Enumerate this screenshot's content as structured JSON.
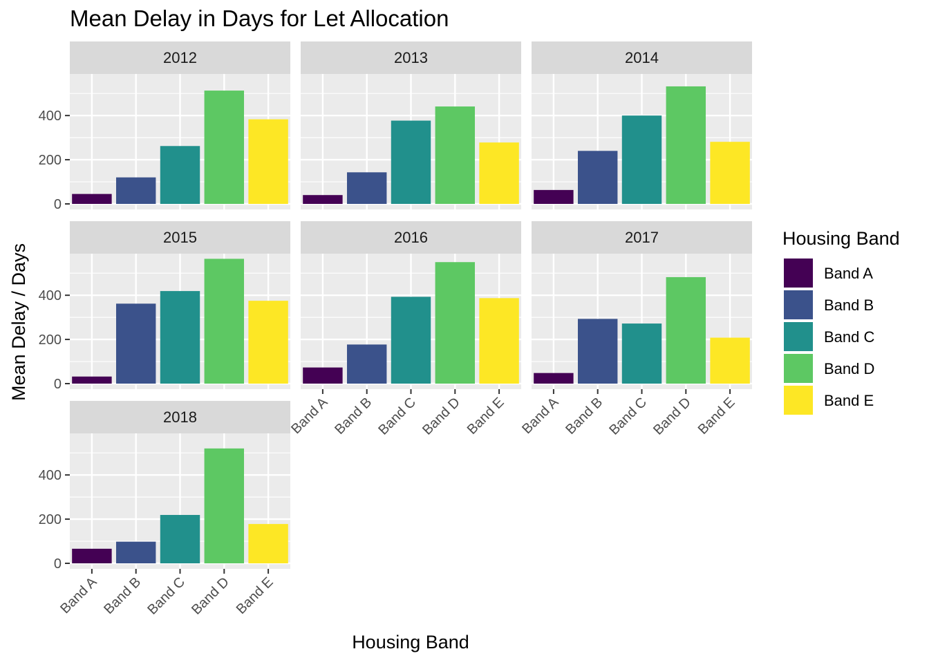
{
  "chart_data": {
    "type": "bar",
    "title": "Mean Delay in Days for Let Allocation",
    "xlabel": "Housing Band",
    "ylabel": "Mean Delay / Days",
    "ylim": [
      0,
      600
    ],
    "yticks": [
      0,
      200,
      400
    ],
    "grid": true,
    "categories": [
      "Band A",
      "Band B",
      "Band C",
      "Band D",
      "Band E"
    ],
    "colors": [
      "#440154",
      "#3b528b",
      "#21908c",
      "#5dc863",
      "#fde725"
    ],
    "legend": {
      "title": "Housing Band",
      "position": "right",
      "entries": [
        "Band A",
        "Band B",
        "Band C",
        "Band D",
        "Band E"
      ]
    },
    "facets": [
      {
        "label": "2012",
        "values": [
          45,
          120,
          262,
          513,
          383
        ]
      },
      {
        "label": "2013",
        "values": [
          40,
          143,
          377,
          441,
          278
        ]
      },
      {
        "label": "2014",
        "values": [
          63,
          240,
          400,
          532,
          281
        ]
      },
      {
        "label": "2015",
        "values": [
          32,
          362,
          419,
          565,
          375
        ]
      },
      {
        "label": "2016",
        "values": [
          73,
          177,
          393,
          550,
          387
        ]
      },
      {
        "label": "2017",
        "values": [
          48,
          293,
          272,
          482,
          208
        ]
      },
      {
        "label": "2018",
        "values": [
          66,
          98,
          219,
          520,
          178
        ]
      }
    ]
  }
}
